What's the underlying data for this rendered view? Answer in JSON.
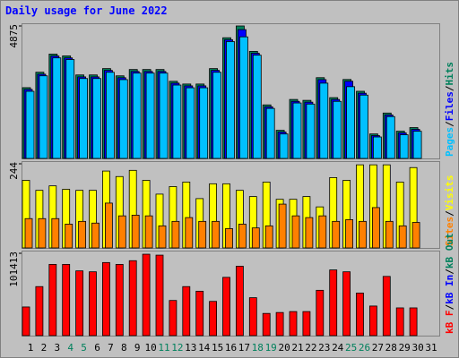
{
  "chart_data": [
    {
      "type": "bar",
      "title": "Daily usage for June 2022",
      "legend_separator": "/",
      "ylim": [
        0,
        4875
      ],
      "yticks": [
        4875
      ],
      "series": [
        {
          "name": "Hits",
          "color": "#00805c",
          "values": [
            2604,
            3172,
            3840,
            3773,
            3072,
            3072,
            3306,
            3039,
            3272,
            3272,
            3272,
            2838,
            2738,
            2738,
            3306,
            4441,
            4875,
            3940,
            1970,
            1035,
            2170,
            2137,
            2972,
            2237,
            2905,
            2471,
            901,
            1670,
            1002,
            1135,
            null
          ]
        },
        {
          "name": "Files",
          "color": "#0000ff",
          "values": [
            2540,
            3100,
            3770,
            3700,
            3000,
            3000,
            3240,
            2970,
            3200,
            3200,
            3200,
            2770,
            2670,
            2670,
            3240,
            4370,
            4741,
            3870,
            1900,
            970,
            2100,
            2070,
            2900,
            2170,
            2840,
            2400,
            840,
            1600,
            940,
            1070,
            null
          ]
        },
        {
          "name": "Pages",
          "color": "#00c0ff",
          "values": [
            2470,
            3040,
            3700,
            3640,
            2940,
            2940,
            3170,
            2900,
            3140,
            3140,
            3140,
            2700,
            2600,
            2600,
            3170,
            4300,
            4474,
            3800,
            1840,
            900,
            2040,
            2000,
            2770,
            2100,
            2640,
            2330,
            790,
            1540,
            870,
            1000,
            null
          ]
        }
      ]
    },
    {
      "type": "bar",
      "legend_separator": "/",
      "ylim": [
        0,
        244
      ],
      "yticks": [
        244
      ],
      "series": [
        {
          "name": "Visits",
          "color": "#ffff00",
          "values": [
            196,
            167,
            180,
            170,
            167,
            167,
            223,
            207,
            225,
            196,
            156,
            178,
            191,
            143,
            186,
            186,
            167,
            149,
            191,
            141,
            141,
            149,
            119,
            204,
            196,
            241,
            241,
            241,
            191,
            233,
            null
          ]
        },
        {
          "name": "Sites",
          "color": "#ff8000",
          "values": [
            85,
            85,
            85,
            69,
            77,
            72,
            130,
            93,
            95,
            93,
            64,
            77,
            88,
            77,
            77,
            56,
            69,
            58,
            64,
            127,
            93,
            88,
            93,
            77,
            82,
            77,
            117,
            77,
            64,
            74,
            null
          ]
        }
      ]
    },
    {
      "type": "bar",
      "legend_separator": "/",
      "ylim": [
        0,
        101413
      ],
      "yticks": [
        101413
      ],
      "categories": [
        "1",
        "2",
        "3",
        "4",
        "5",
        "6",
        "7",
        "8",
        "9",
        "10",
        "11",
        "12",
        "13",
        "14",
        "15",
        "16",
        "17",
        "18",
        "19",
        "20",
        "21",
        "22",
        "23",
        "24",
        "25",
        "26",
        "27",
        "28",
        "29",
        "30",
        "31"
      ],
      "weekend_indices": [
        3,
        4,
        10,
        11,
        17,
        18,
        24,
        25
      ],
      "weekend_color": "#00805c",
      "weekday_color": "#000000",
      "series": [
        {
          "name": "kB Out",
          "color": "#00805c"
        },
        {
          "name": "kB In",
          "color": "#0000ff"
        },
        {
          "name": "kB F",
          "color": "#ff0000",
          "values": [
            35325,
            60394,
            87742,
            87742,
            79765,
            78626,
            90021,
            87742,
            92300,
            100276,
            99137,
            43301,
            60394,
            54696,
            42162,
            71789,
            85463,
            46720,
            27348,
            28488,
            29627,
            29627,
            55836,
            80905,
            78626,
            52417,
            36464,
            72928,
            34185,
            34185,
            null
          ]
        }
      ]
    }
  ]
}
